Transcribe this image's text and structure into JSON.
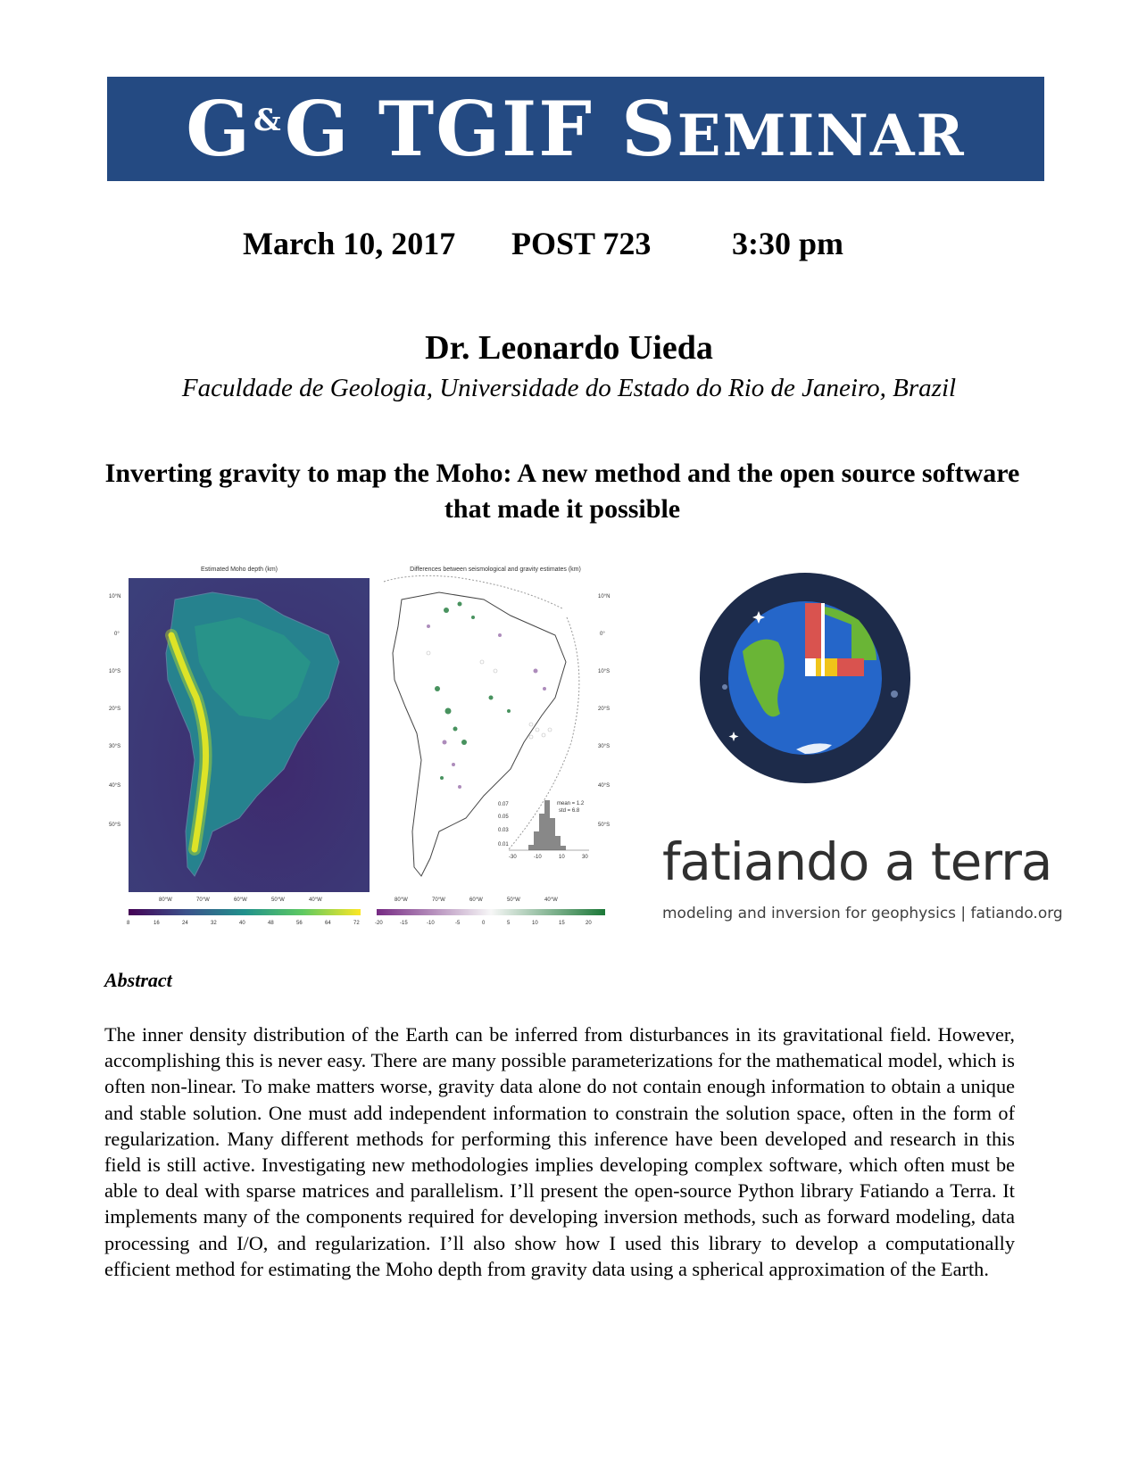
{
  "banner": {
    "part1": "G",
    "amp": "&",
    "part2": "G TGIF S",
    "small_caps": "EMINAR"
  },
  "meta": {
    "date": "March 10, 2017",
    "room": "POST 723",
    "time": "3:30 pm"
  },
  "speaker": {
    "name": "Dr. Leonardo Uieda",
    "affiliation": "Faculdade de Geologia, Universidade do Estado do Rio de Janeiro, Brazil"
  },
  "talk": {
    "title": "Inverting gravity to map the Moho: A new method and the open source software that made it possible"
  },
  "figures": {
    "left_map": {
      "title": "Estimated Moho depth (km)",
      "colorbar_ticks": [
        "8",
        "16",
        "24",
        "32",
        "40",
        "48",
        "56",
        "64",
        "72"
      ],
      "lon_ticks": [
        "80°W",
        "70°W",
        "60°W",
        "50°W",
        "40°W"
      ],
      "lat_ticks": [
        "10°N",
        "0°",
        "10°S",
        "20°S",
        "30°S",
        "40°S",
        "50°S"
      ],
      "colors": [
        "#440154",
        "#3b528b",
        "#21918c",
        "#5ec962",
        "#fde725"
      ]
    },
    "right_map": {
      "title": "Differences between seismological and gravity estimates (km)",
      "colorbar_ticks": [
        "-20",
        "-15",
        "-10",
        "-5",
        "0",
        "5",
        "10",
        "15",
        "20"
      ],
      "lon_ticks": [
        "80°W",
        "70°W",
        "60°W",
        "50°W",
        "40°W"
      ],
      "lat_ticks": [
        "10°N",
        "0°",
        "10°S",
        "20°S",
        "30°S",
        "40°S",
        "50°S"
      ],
      "hist_stats": "mean = 1.2\nstd = 6.8",
      "hist_y_ticks": [
        "0.07",
        "0.05",
        "0.03",
        "0.01"
      ],
      "hist_x_ticks": [
        "-30",
        "-10",
        "10",
        "30"
      ],
      "colors": [
        "#762a83",
        "#f7f7f7",
        "#1b7837"
      ]
    }
  },
  "logo": {
    "word1": "fatiando",
    "word2": " a terra",
    "tagline": "modeling and inversion for geophysics | fatiando.org",
    "colors": {
      "ring": "#1d2b4a",
      "ocean": "#2566c9",
      "land": "#6ab536",
      "red": "#d9534f",
      "yellow": "#f0c419"
    }
  },
  "abstract": {
    "heading": "Abstract",
    "body": "The inner density distribution of the Earth can be inferred from disturbances in its gravitational field. However, accomplishing this is never easy. There are many possible parameterizations for the mathematical model, which is often non-linear. To make matters worse, gravity data alone do not contain enough information to obtain a unique and stable solution. One must add independent information to constrain the solution space, often in the form of regularization. Many different methods for performing this inference have been developed and research in this field is still active. Investigating new methodologies implies developing complex software, which often must be able to deal with sparse matrices and parallelism. I’ll present the open-source Python library Fatiando a Terra. It implements many of the components required for developing inversion methods, such as forward modeling, data processing and I/O, and regularization. I’ll also show how I used this library to develop a computationally efficient method for estimating the Moho depth from gravity data using a spherical approximation of the Earth."
  }
}
